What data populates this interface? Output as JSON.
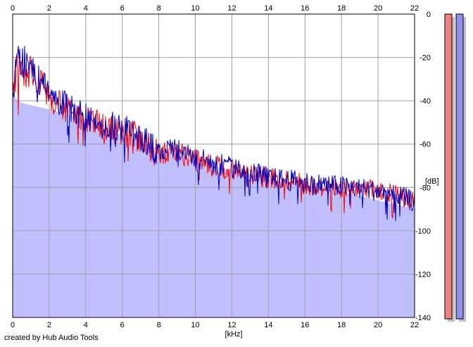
{
  "footer_text": "created by Hub Audio Tools",
  "chart_data": {
    "type": "line",
    "title": "",
    "xlabel": "[kHz]",
    "ylabel": "[dB]",
    "xlim": [
      0,
      22
    ],
    "ylim": [
      -140,
      0
    ],
    "x_ticks": [
      0,
      2,
      4,
      6,
      8,
      10,
      12,
      14,
      16,
      18,
      20,
      22
    ],
    "x_tick_labels": [
      "0",
      "2",
      "4",
      "6",
      "8",
      "10",
      "12",
      "14",
      "16",
      "18",
      "20",
      "22"
    ],
    "y_ticks": [
      0,
      -20,
      -40,
      -60,
      -80,
      -100,
      -120,
      -140
    ],
    "y_tick_labels": [
      "0",
      "-20",
      "-40",
      "-60",
      "-80",
      "-100",
      "-120",
      "-140"
    ],
    "grid": true,
    "colors": {
      "fill": "#c0c0ff",
      "left_channel": "#ff0000",
      "right_channel": "#0000c0",
      "grid": "#a0a0a0",
      "meter_left": "#f08080",
      "meter_right": "#9090f0",
      "meter_shadow": "#c0c0c0"
    },
    "series": [
      {
        "x": [
          0,
          0.2,
          0.5,
          1,
          1.5,
          2,
          3,
          4,
          5,
          6,
          7,
          8,
          9,
          10,
          11,
          12,
          13,
          14,
          15,
          16,
          17,
          18,
          19,
          20,
          21,
          22
        ],
        "values": [
          -38,
          -22,
          -21,
          -24,
          -30,
          -36,
          -42,
          -47,
          -50,
          -52,
          -55,
          -63,
          -62,
          -66,
          -68,
          -70,
          -72,
          -74,
          -75,
          -77,
          -78,
          -79,
          -79,
          -80,
          -82,
          -85
        ]
      },
      {
        "x": [
          0,
          0.2,
          0.5,
          1,
          1.5,
          2,
          3,
          4,
          5,
          6,
          7,
          8,
          9,
          10,
          11,
          12,
          13,
          14,
          15,
          16,
          17,
          18,
          19,
          20,
          21,
          22
        ],
        "values": [
          -36,
          -20,
          -19,
          -23,
          -29,
          -35,
          -41,
          -46,
          -49,
          -51,
          -54,
          -62,
          -61,
          -65,
          -67,
          -69,
          -71,
          -74,
          -75,
          -76,
          -77,
          -78,
          -79,
          -80,
          -82,
          -85
        ]
      }
    ],
    "fill_floor": {
      "x": [
        0,
        0.5,
        2,
        4,
        6,
        8,
        10,
        12,
        14,
        16,
        18,
        20,
        22
      ],
      "values": [
        -38,
        -41,
        -44,
        -49,
        -56,
        -62,
        -68,
        -72,
        -76,
        -79,
        -82,
        -86,
        -90
      ]
    }
  }
}
